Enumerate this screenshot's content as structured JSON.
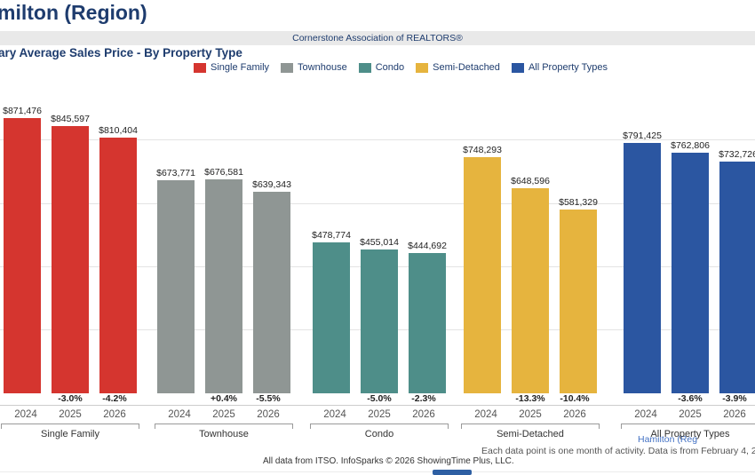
{
  "header": {
    "page_title_visible": "milton (Region)",
    "banner_text": "Cornerstone Association of REALTORS®",
    "chart_title_visible": "ary Average Sales Price - By Property Type"
  },
  "legend": [
    {
      "label": "Single Family",
      "color": "#d5352f"
    },
    {
      "label": "Townhouse",
      "color": "#8f9694"
    },
    {
      "label": "Condo",
      "color": "#4e8e89"
    },
    {
      "label": "Semi-Detached",
      "color": "#e6b43e"
    },
    {
      "label": "All Property Types",
      "color": "#2b56a1"
    }
  ],
  "chart_data": {
    "type": "bar",
    "title": "ary Average Sales Price - By Property Type",
    "categories": [
      "2024",
      "2025",
      "2026"
    ],
    "ylim": [
      0,
      1000000
    ],
    "grid": true,
    "legend_position": "top",
    "gridline_values": [
      200000,
      400000,
      600000,
      800000
    ],
    "groups": [
      {
        "name": "Single Family",
        "color": "#d5352f",
        "values": [
          871476,
          845597,
          810404
        ],
        "value_labels": [
          "$871,476",
          "$845,597",
          "$810,404"
        ],
        "pct_change": [
          "",
          "-3.0%",
          "-4.2%"
        ]
      },
      {
        "name": "Townhouse",
        "color": "#8f9694",
        "values": [
          673771,
          676581,
          639343
        ],
        "value_labels": [
          "$673,771",
          "$676,581",
          "$639,343"
        ],
        "pct_change": [
          "",
          "+0.4%",
          "-5.5%"
        ]
      },
      {
        "name": "Condo",
        "color": "#4e8e89",
        "values": [
          478774,
          455014,
          444692
        ],
        "value_labels": [
          "$478,774",
          "$455,014",
          "$444,692"
        ],
        "pct_change": [
          "",
          "-5.0%",
          "-2.3%"
        ]
      },
      {
        "name": "Semi-Detached",
        "color": "#e6b43e",
        "values": [
          748293,
          648596,
          581329
        ],
        "value_labels": [
          "$748,293",
          "$648,596",
          "$581,329"
        ],
        "pct_change": [
          "",
          "-13.3%",
          "-10.4%"
        ]
      },
      {
        "name": "All Property Types",
        "color": "#2b56a1",
        "values": [
          791425,
          762806,
          732726
        ],
        "value_labels": [
          "$791,425",
          "$762,806",
          "$732,726"
        ],
        "pct_change": [
          "",
          "-3.6%",
          "-3.9%"
        ]
      }
    ]
  },
  "footer": {
    "region_link_visible": "Hamilton (Reg",
    "data_note_visible": "Each data point is one month of activity. Data is from February 4, 2",
    "attribution": "All data from ITSO. InfoSparks © 2026 ShowingTime Plus, LLC."
  }
}
